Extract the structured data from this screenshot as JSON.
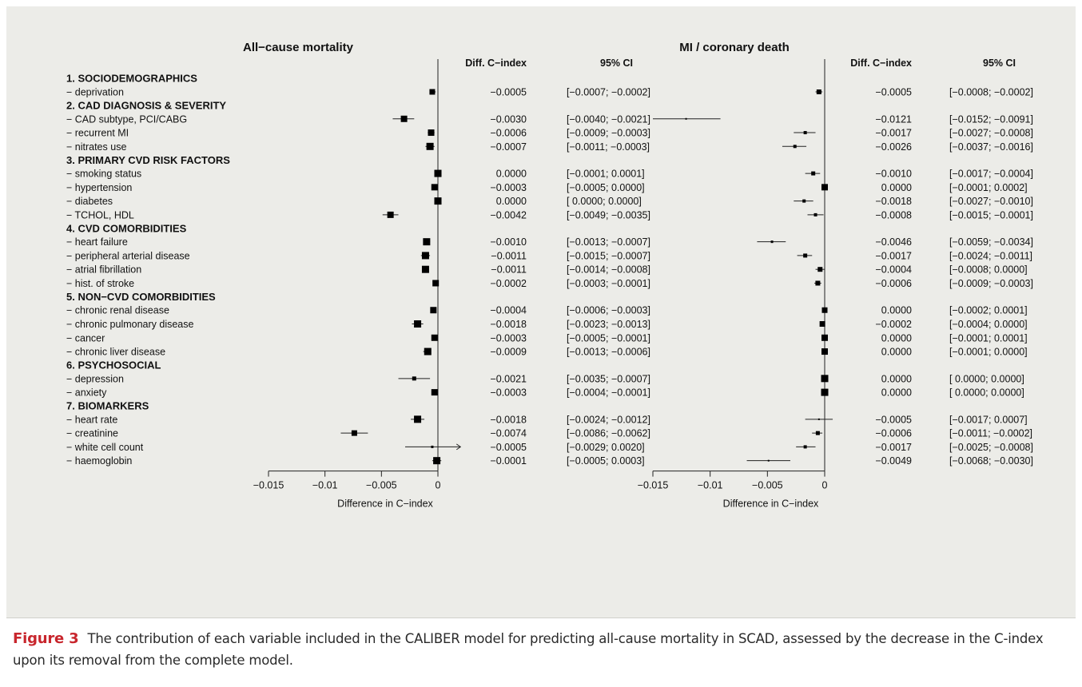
{
  "figure": {
    "label": "Figure 3",
    "caption": "The contribution of each variable included in the CALIBER model for predicting all-cause mortality in SCAD, assessed by the decrease in the C-index upon its removal from the complete model."
  },
  "chart_data": [
    {
      "type": "scatter",
      "title": "All−cause mortality",
      "xlabel": "Difference in C−index",
      "xlim": [
        -0.015,
        0
      ],
      "xticks": [
        "−0.015",
        "−0.01",
        "−0.005",
        "0"
      ],
      "col_headers": {
        "diff": "Diff. C−index",
        "ci": "95% CI"
      },
      "groups": [
        {
          "heading": "1. SOCIODEMOGRAPHICS",
          "rows": [
            {
              "label": "− deprivation",
              "value": -0.0005,
              "lo": -0.0007,
              "hi": -0.0002,
              "diff_text": "−0.0005",
              "ci_text": "[−0.0007; −0.0002]",
              "size": 7
            }
          ]
        },
        {
          "heading": "2. CAD DIAGNOSIS & SEVERITY",
          "rows": [
            {
              "label": "− CAD subtype, PCI/CABG",
              "value": -0.003,
              "lo": -0.004,
              "hi": -0.0021,
              "diff_text": "−0.0030",
              "ci_text": "[−0.0040; −0.0021]",
              "size": 8
            },
            {
              "label": "− recurrent MI",
              "value": -0.0006,
              "lo": -0.0009,
              "hi": -0.0003,
              "diff_text": "−0.0006",
              "ci_text": "[−0.0009; −0.0003]",
              "size": 8
            },
            {
              "label": "− nitrates use",
              "value": -0.0007,
              "lo": -0.0011,
              "hi": -0.0003,
              "diff_text": "−0.0007",
              "ci_text": "[−0.0011; −0.0003]",
              "size": 9
            }
          ]
        },
        {
          "heading": "3. PRIMARY CVD RISK FACTORS",
          "rows": [
            {
              "label": "− smoking status",
              "value": 0.0,
              "lo": -0.0001,
              "hi": 0.0001,
              "diff_text": "0.0000",
              "ci_text": "[−0.0001;  0.0001]",
              "size": 9
            },
            {
              "label": "− hypertension",
              "value": -0.0003,
              "lo": -0.0005,
              "hi": 0.0,
              "diff_text": "−0.0003",
              "ci_text": "[−0.0005;  0.0000]",
              "size": 8
            },
            {
              "label": "− diabetes",
              "value": 0.0,
              "lo": 0.0,
              "hi": 0.0,
              "diff_text": "0.0000",
              "ci_text": "[ 0.0000;  0.0000]",
              "size": 9
            },
            {
              "label": "− TCHOL, HDL",
              "value": -0.0042,
              "lo": -0.0049,
              "hi": -0.0035,
              "diff_text": "−0.0042",
              "ci_text": "[−0.0049; −0.0035]",
              "size": 8
            }
          ]
        },
        {
          "heading": "4. CVD COMORBIDITIES",
          "rows": [
            {
              "label": "− heart failure",
              "value": -0.001,
              "lo": -0.0013,
              "hi": -0.0007,
              "diff_text": "−0.0010",
              "ci_text": "[−0.0013; −0.0007]",
              "size": 9
            },
            {
              "label": "− peripheral arterial disease",
              "value": -0.0011,
              "lo": -0.0015,
              "hi": -0.0007,
              "diff_text": "−0.0011",
              "ci_text": "[−0.0015; −0.0007]",
              "size": 9
            },
            {
              "label": "− atrial fibrillation",
              "value": -0.0011,
              "lo": -0.0014,
              "hi": -0.0008,
              "diff_text": "−0.0011",
              "ci_text": "[−0.0014; −0.0008]",
              "size": 9
            },
            {
              "label": "− hist. of stroke",
              "value": -0.0002,
              "lo": -0.0003,
              "hi": -0.0001,
              "diff_text": "−0.0002",
              "ci_text": "[−0.0003; −0.0001]",
              "size": 8
            }
          ]
        },
        {
          "heading": "5. NON−CVD COMORBIDITIES",
          "rows": [
            {
              "label": "− chronic renal disease",
              "value": -0.0004,
              "lo": -0.0006,
              "hi": -0.0003,
              "diff_text": "−0.0004",
              "ci_text": "[−0.0006; −0.0003]",
              "size": 8
            },
            {
              "label": "− chronic pulmonary disease",
              "value": -0.0018,
              "lo": -0.0023,
              "hi": -0.0013,
              "diff_text": "−0.0018",
              "ci_text": "[−0.0023; −0.0013]",
              "size": 9
            },
            {
              "label": "− cancer",
              "value": -0.0003,
              "lo": -0.0005,
              "hi": -0.0001,
              "diff_text": "−0.0003",
              "ci_text": "[−0.0005; −0.0001]",
              "size": 8
            },
            {
              "label": "− chronic liver disease",
              "value": -0.0009,
              "lo": -0.0013,
              "hi": -0.0006,
              "diff_text": "−0.0009",
              "ci_text": "[−0.0013; −0.0006]",
              "size": 9
            }
          ]
        },
        {
          "heading": "6. PSYCHOSOCIAL",
          "rows": [
            {
              "label": "− depression",
              "value": -0.0021,
              "lo": -0.0035,
              "hi": -0.0007,
              "diff_text": "−0.0021",
              "ci_text": "[−0.0035; −0.0007]",
              "size": 5
            },
            {
              "label": "− anxiety",
              "value": -0.0003,
              "lo": -0.0004,
              "hi": -0.0001,
              "diff_text": "−0.0003",
              "ci_text": "[−0.0004; −0.0001]",
              "size": 8
            }
          ]
        },
        {
          "heading": "7. BIOMARKERS",
          "rows": [
            {
              "label": "− heart rate",
              "value": -0.0018,
              "lo": -0.0024,
              "hi": -0.0012,
              "diff_text": "−0.0018",
              "ci_text": "[−0.0024; −0.0012]",
              "size": 9
            },
            {
              "label": "− creatinine",
              "value": -0.0074,
              "lo": -0.0086,
              "hi": -0.0062,
              "diff_text": "−0.0074",
              "ci_text": "[−0.0086; −0.0062]",
              "size": 7
            },
            {
              "label": "− white cell count",
              "value": -0.0005,
              "lo": -0.0029,
              "hi": 0.002,
              "diff_text": "−0.0005",
              "ci_text": "[−0.0029;  0.0020]",
              "size": 3
            },
            {
              "label": "− haemoglobin",
              "value": -0.0001,
              "lo": -0.0005,
              "hi": 0.0003,
              "diff_text": "−0.0001",
              "ci_text": "[−0.0005;  0.0003]",
              "size": 9
            }
          ]
        }
      ]
    },
    {
      "type": "scatter",
      "title": "MI / coronary death",
      "xlabel": "Difference in C−index",
      "xlim": [
        -0.015,
        0
      ],
      "xticks": [
        "−0.015",
        "−0.01",
        "−0.005",
        "0"
      ],
      "col_headers": {
        "diff": "Diff. C−index",
        "ci": "95% CI"
      },
      "groups": [
        {
          "rows": [
            {
              "value": -0.0005,
              "lo": -0.0008,
              "hi": -0.0002,
              "diff_text": "−0.0005",
              "ci_text": "[−0.0008; −0.0002]",
              "size": 6
            }
          ]
        },
        {
          "rows": [
            {
              "value": -0.0121,
              "lo": -0.0152,
              "hi": -0.0091,
              "diff_text": "−0.0121",
              "ci_text": "[−0.0152; −0.0091]",
              "size": 2
            },
            {
              "value": -0.0017,
              "lo": -0.0027,
              "hi": -0.0008,
              "diff_text": "−0.0017",
              "ci_text": "[−0.0027; −0.0008]",
              "size": 4
            },
            {
              "value": -0.0026,
              "lo": -0.0037,
              "hi": -0.0016,
              "diff_text": "−0.0026",
              "ci_text": "[−0.0037; −0.0016]",
              "size": 4
            }
          ]
        },
        {
          "rows": [
            {
              "value": -0.001,
              "lo": -0.0017,
              "hi": -0.0004,
              "diff_text": "−0.0010",
              "ci_text": "[−0.0017; −0.0004]",
              "size": 5
            },
            {
              "value": 0.0,
              "lo": -0.0001,
              "hi": 0.0002,
              "diff_text": "0.0000",
              "ci_text": "[−0.0001;  0.0002]",
              "size": 8
            },
            {
              "value": -0.0018,
              "lo": -0.0027,
              "hi": -0.001,
              "diff_text": "−0.0018",
              "ci_text": "[−0.0027; −0.0010]",
              "size": 4
            },
            {
              "value": -0.0008,
              "lo": -0.0015,
              "hi": -0.0001,
              "diff_text": "−0.0008",
              "ci_text": "[−0.0015; −0.0001]",
              "size": 4
            }
          ]
        },
        {
          "rows": [
            {
              "value": -0.0046,
              "lo": -0.0059,
              "hi": -0.0034,
              "diff_text": "−0.0046",
              "ci_text": "[−0.0059; −0.0034]",
              "size": 3
            },
            {
              "value": -0.0017,
              "lo": -0.0024,
              "hi": -0.0011,
              "diff_text": "−0.0017",
              "ci_text": "[−0.0024; −0.0011]",
              "size": 5
            },
            {
              "value": -0.0004,
              "lo": -0.0008,
              "hi": 0.0,
              "diff_text": "−0.0004",
              "ci_text": "[−0.0008;  0.0000]",
              "size": 6
            },
            {
              "value": -0.0006,
              "lo": -0.0009,
              "hi": -0.0003,
              "diff_text": "−0.0006",
              "ci_text": "[−0.0009; −0.0003]",
              "size": 6
            }
          ]
        },
        {
          "rows": [
            {
              "value": 0.0,
              "lo": -0.0002,
              "hi": 0.0001,
              "diff_text": "0.0000",
              "ci_text": "[−0.0002;  0.0001]",
              "size": 7
            },
            {
              "value": -0.0002,
              "lo": -0.0004,
              "hi": 0.0,
              "diff_text": "−0.0002",
              "ci_text": "[−0.0004;  0.0000]",
              "size": 7
            },
            {
              "value": 0.0,
              "lo": -0.0001,
              "hi": 0.0001,
              "diff_text": "0.0000",
              "ci_text": "[−0.0001;  0.0001]",
              "size": 8
            },
            {
              "value": 0.0,
              "lo": -0.0001,
              "hi": 0.0,
              "diff_text": "0.0000",
              "ci_text": "[−0.0001;  0.0000]",
              "size": 8
            }
          ]
        },
        {
          "rows": [
            {
              "value": 0.0,
              "lo": 0.0,
              "hi": 0.0,
              "diff_text": "0.0000",
              "ci_text": "[ 0.0000;  0.0000]",
              "size": 9
            },
            {
              "value": 0.0,
              "lo": 0.0,
              "hi": 0.0,
              "diff_text": "0.0000",
              "ci_text": "[ 0.0000;  0.0000]",
              "size": 9
            }
          ]
        },
        {
          "rows": [
            {
              "value": -0.0005,
              "lo": -0.0017,
              "hi": 0.0007,
              "diff_text": "−0.0005",
              "ci_text": "[−0.0017;  0.0007]",
              "size": 2
            },
            {
              "value": -0.0006,
              "lo": -0.0011,
              "hi": -0.0002,
              "diff_text": "−0.0006",
              "ci_text": "[−0.0011; −0.0002]",
              "size": 5
            },
            {
              "value": -0.0017,
              "lo": -0.0025,
              "hi": -0.0008,
              "diff_text": "−0.0017",
              "ci_text": "[−0.0025; −0.0008]",
              "size": 4
            },
            {
              "value": -0.0049,
              "lo": -0.0068,
              "hi": -0.003,
              "diff_text": "−0.0049",
              "ci_text": "[−0.0068; −0.0030]",
              "size": 2
            }
          ]
        }
      ]
    }
  ]
}
